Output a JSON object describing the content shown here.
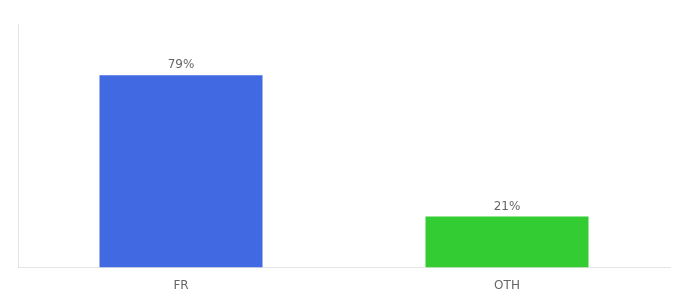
{
  "chart_data": {
    "type": "bar",
    "categories": [
      "FR",
      "OTH"
    ],
    "values": [
      79,
      21
    ],
    "value_labels": [
      "79%",
      "21%"
    ],
    "colors": [
      "#4169e1",
      "#33cc33"
    ],
    "ylim": [
      0,
      100
    ],
    "grid": false,
    "tick_labels": "x",
    "data_labels": true
  }
}
